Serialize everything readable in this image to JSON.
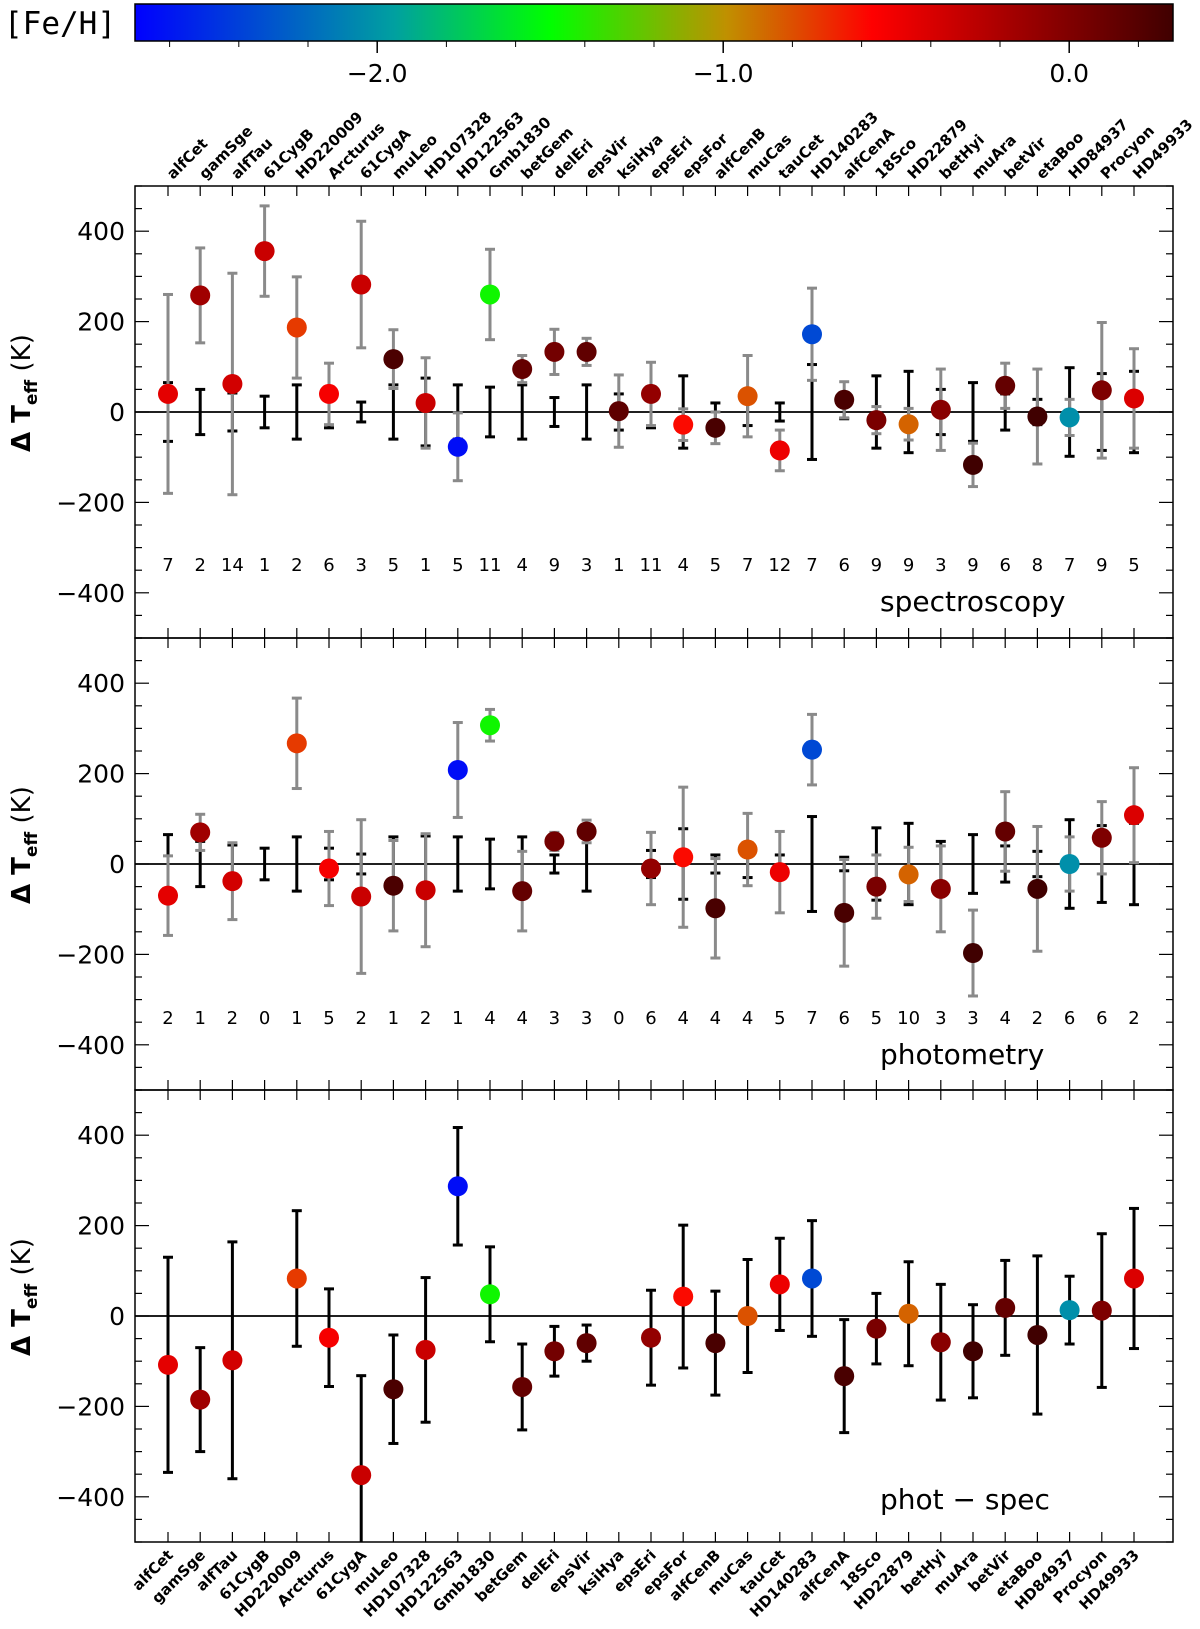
{
  "colorbar": {
    "title": "[Fe/H]",
    "range": [
      -2.7,
      0.3
    ],
    "ticks": [
      -2.0,
      -1.0,
      0.0
    ],
    "tick_labels": [
      "−2.0",
      "−1.0",
      "0.0"
    ]
  },
  "chart_data": [
    {
      "type": "scatter",
      "panel_label": "spectroscopy",
      "ylabel": "Δ T",
      "ylabel_sub": "eff",
      "ylabel_unit": "(K)",
      "ylim": [
        -500,
        500
      ],
      "yticks": [
        -400,
        -200,
        0,
        200,
        400
      ],
      "ytick_labels": [
        "−400",
        "−200",
        "0",
        "200",
        "400"
      ],
      "categories": [
        "alfCet",
        "gamSge",
        "alfTau",
        "61CygB",
        "HD220009",
        "Arcturus",
        "61CygA",
        "muLeo",
        "HD107328",
        "HD122563",
        "Gmb1830",
        "betGem",
        "delEri",
        "epsVir",
        "ksiHya",
        "epsEri",
        "epsFor",
        "alfCenB",
        "muCas",
        "tauCet",
        "HD140283",
        "alfCenA",
        "18Sco",
        "HD22879",
        "betHyi",
        "muAra",
        "betVir",
        "etaBoo",
        "HD84937",
        "Procyon",
        "HD49933"
      ],
      "values": [
        40,
        258,
        62,
        356,
        187,
        40,
        282,
        117,
        20,
        -77,
        260,
        95,
        133,
        133,
        2,
        40,
        -28,
        -35,
        35,
        -85,
        172,
        27,
        -18,
        -27,
        5,
        -117,
        58,
        -10,
        -12,
        48,
        30
      ],
      "gray_err": [
        220,
        105,
        245,
        100,
        112,
        68,
        140,
        65,
        100,
        75,
        100,
        30,
        50,
        30,
        80,
        70,
        35,
        35,
        90,
        45,
        102,
        40,
        30,
        35,
        90,
        48,
        50,
        105,
        40,
        150,
        110
      ],
      "black_err": [
        65,
        50,
        42,
        35,
        60,
        35,
        22,
        60,
        75,
        60,
        55,
        60,
        32,
        60,
        40,
        35,
        80,
        20,
        30,
        20,
        105,
        15,
        80,
        90,
        50,
        65,
        40,
        28,
        98,
        85,
        90
      ],
      "counts": [
        "7",
        "2",
        "14",
        "1",
        "2",
        "6",
        "3",
        "5",
        "1",
        "5",
        "11",
        "4",
        "9",
        "3",
        "1",
        "11",
        "4",
        "5",
        "7",
        "12",
        "7",
        "6",
        "9",
        "9",
        "3",
        "9",
        "6",
        "8",
        "7",
        "9",
        "5"
      ],
      "feh": [
        -0.45,
        -0.15,
        -0.37,
        -0.33,
        -0.74,
        -0.53,
        -0.33,
        0.25,
        -0.33,
        -2.64,
        -1.46,
        0.13,
        0.06,
        0.15,
        0.16,
        -0.09,
        -0.6,
        0.26,
        -0.81,
        -0.49,
        -2.36,
        0.26,
        0.03,
        -0.86,
        -0.04,
        0.35,
        0.13,
        0.32,
        -2.03,
        0.01,
        -0.41
      ]
    },
    {
      "type": "scatter",
      "panel_label": "photometry",
      "ylabel": "Δ T",
      "ylabel_sub": "eff",
      "ylabel_unit": "(K)",
      "ylim": [
        -500,
        500
      ],
      "yticks": [
        -400,
        -200,
        0,
        200,
        400
      ],
      "ytick_labels": [
        "−400",
        "−200",
        "0",
        "200",
        "400"
      ],
      "categories": [
        "alfCet",
        "gamSge",
        "alfTau",
        "61CygB",
        "HD220009",
        "Arcturus",
        "61CygA",
        "muLeo",
        "HD107328",
        "HD122563",
        "Gmb1830",
        "betGem",
        "delEri",
        "epsVir",
        "ksiHya",
        "epsEri",
        "epsFor",
        "alfCenB",
        "muCas",
        "tauCet",
        "HD140283",
        "alfCenA",
        "18Sco",
        "HD22879",
        "betHyi",
        "muAra",
        "betVir",
        "etaBoo",
        "HD84937",
        "Procyon",
        "HD49933"
      ],
      "values": [
        -70,
        70,
        -38,
        null,
        267,
        -10,
        -72,
        -48,
        -58,
        208,
        307,
        -60,
        50,
        72,
        null,
        -10,
        15,
        -98,
        32,
        -18,
        253,
        -108,
        -50,
        -23,
        -55,
        -197,
        72,
        -55,
        0,
        58,
        108
      ],
      "gray_err": [
        88,
        40,
        85,
        null,
        100,
        82,
        170,
        100,
        125,
        105,
        35,
        88,
        20,
        25,
        null,
        80,
        155,
        110,
        80,
        90,
        78,
        118,
        70,
        60,
        95,
        95,
        88,
        138,
        60,
        80,
        105
      ],
      "black_err": [
        65,
        50,
        42,
        35,
        60,
        35,
        22,
        60,
        62,
        60,
        55,
        60,
        20,
        60,
        null,
        30,
        78,
        20,
        30,
        20,
        105,
        15,
        80,
        90,
        50,
        65,
        40,
        28,
        98,
        85,
        90
      ],
      "counts": [
        "2",
        "1",
        "2",
        "0",
        "1",
        "5",
        "2",
        "1",
        "2",
        "1",
        "4",
        "4",
        "3",
        "3",
        "0",
        "6",
        "4",
        "4",
        "4",
        "5",
        "7",
        "6",
        "5",
        "10",
        "3",
        "3",
        "4",
        "2",
        "6",
        "6",
        "2"
      ],
      "feh": [
        -0.45,
        -0.15,
        -0.37,
        -0.33,
        -0.74,
        -0.53,
        -0.33,
        0.25,
        -0.33,
        -2.64,
        -1.46,
        0.13,
        0.06,
        0.15,
        0.16,
        -0.09,
        -0.6,
        0.26,
        -0.81,
        -0.49,
        -2.36,
        0.26,
        0.03,
        -0.86,
        -0.04,
        0.35,
        0.13,
        0.32,
        -2.03,
        0.01,
        -0.41
      ]
    },
    {
      "type": "scatter",
      "panel_label": "phot − spec",
      "ylabel": "Δ T",
      "ylabel_sub": "eff",
      "ylabel_unit": "(K)",
      "ylim": [
        -500,
        500
      ],
      "yticks": [
        -400,
        -200,
        0,
        200,
        400
      ],
      "ytick_labels": [
        "−400",
        "−200",
        "0",
        "200",
        "400"
      ],
      "categories": [
        "alfCet",
        "gamSge",
        "alfTau",
        "61CygB",
        "HD220009",
        "Arcturus",
        "61CygA",
        "muLeo",
        "HD107328",
        "HD122563",
        "Gmb1830",
        "betGem",
        "delEri",
        "epsVir",
        "ksiHya",
        "epsEri",
        "epsFor",
        "alfCenB",
        "muCas",
        "tauCet",
        "HD140283",
        "alfCenA",
        "18Sco",
        "HD22879",
        "betHyi",
        "muAra",
        "betVir",
        "etaBoo",
        "HD84937",
        "Procyon",
        "HD49933"
      ],
      "values": [
        -108,
        -185,
        -98,
        null,
        83,
        -48,
        -352,
        -162,
        -75,
        287,
        48,
        -157,
        -78,
        -60,
        null,
        -48,
        43,
        -60,
        0,
        70,
        83,
        -133,
        -28,
        5,
        -58,
        -78,
        18,
        -42,
        13,
        12,
        83
      ],
      "err": [
        238,
        115,
        262,
        null,
        150,
        108,
        220,
        120,
        160,
        130,
        105,
        95,
        55,
        40,
        null,
        105,
        158,
        115,
        125,
        102,
        128,
        125,
        78,
        115,
        128,
        103,
        105,
        175,
        75,
        170,
        155
      ],
      "feh": [
        -0.45,
        -0.15,
        -0.37,
        -0.33,
        -0.74,
        -0.53,
        -0.33,
        0.25,
        -0.33,
        -2.64,
        -1.46,
        0.13,
        0.06,
        0.15,
        0.16,
        -0.09,
        -0.6,
        0.26,
        -0.81,
        -0.49,
        -2.36,
        0.26,
        0.03,
        -0.86,
        -0.04,
        0.35,
        0.13,
        0.32,
        -2.03,
        0.01,
        -0.41
      ]
    }
  ]
}
